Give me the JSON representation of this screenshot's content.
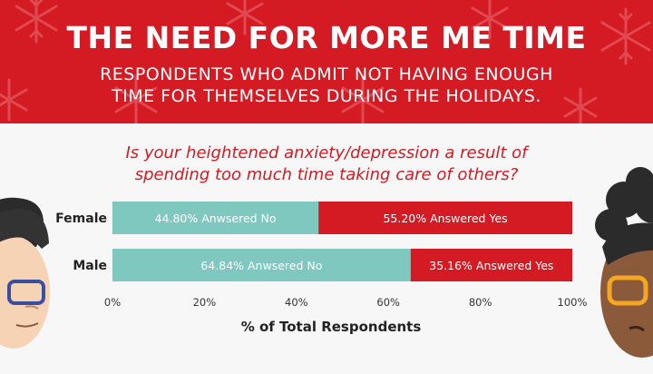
{
  "banner": {
    "title": "THE NEED FOR MORE ME TIME",
    "subtitle_line1": "RESPONDENTS WHO ADMIT NOT HAVING ENOUGH",
    "subtitle_line2": "TIME FOR THEMSELVES DURING THE HOLIDAYS."
  },
  "question": {
    "line1": "Is your heightened anxiety/depression a result of",
    "line2": "spending too much time taking care of others?"
  },
  "colors": {
    "red": "#d41b24",
    "teal": "#7ec8c0",
    "white": "#ffffff"
  },
  "chart_data": {
    "type": "bar",
    "orientation": "horizontal",
    "stacked": true,
    "categories": [
      "Female",
      "Male"
    ],
    "series": [
      {
        "name": "Answered No",
        "values": [
          44.8,
          64.84
        ],
        "labels": [
          "44.80% Anwsered No",
          "64.84% Anwsered No"
        ]
      },
      {
        "name": "Answered Yes",
        "values": [
          55.2,
          35.16
        ],
        "labels": [
          "55.20% Answered Yes",
          "35.16% Answered Yes"
        ]
      }
    ],
    "xlabel": "% of Total Respondents",
    "xlim": [
      0,
      100
    ],
    "xticks": [
      "0%",
      "20%",
      "40%",
      "60%",
      "80%",
      "100%"
    ],
    "grid": false
  }
}
